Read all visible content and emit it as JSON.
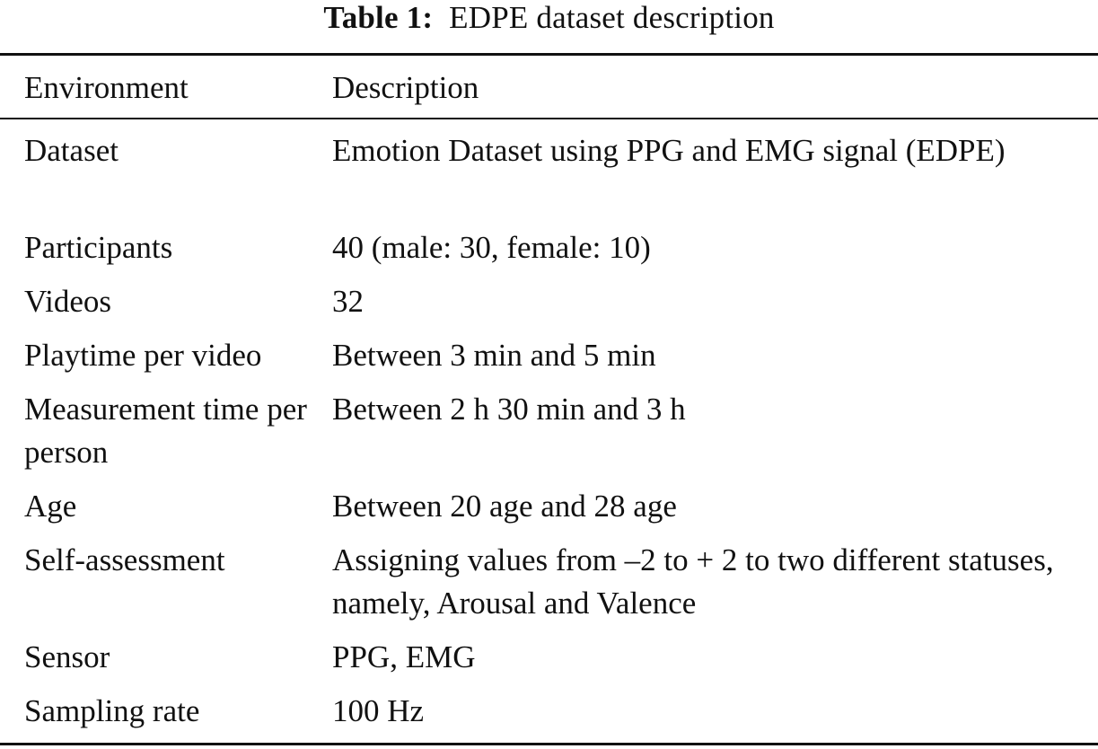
{
  "caption": {
    "label": "Table 1:",
    "title": "EDPE dataset description"
  },
  "table": {
    "headers": [
      "Environment",
      "Description"
    ],
    "rows": [
      {
        "environment": "Dataset",
        "description": "Emotion Dataset using PPG and EMG signal (EDPE)"
      },
      {
        "environment": "Participants",
        "description": "40 (male: 30, female: 10)"
      },
      {
        "environment": "Videos",
        "description": "32"
      },
      {
        "environment": "Playtime per video",
        "description": "Between 3 min and 5 min"
      },
      {
        "environment": "Measurement time per person",
        "description": "Between 2 h 30 min and 3 h"
      },
      {
        "environment": "Age",
        "description": "Between 20 age and 28 age"
      },
      {
        "environment": "Self-assessment",
        "description": "Assigning values from –2 to + 2 to two different statuses, namely, Arousal and Valence"
      },
      {
        "environment": "Sensor",
        "description": "PPG, EMG"
      },
      {
        "environment": "Sampling rate",
        "description": "100 Hz"
      }
    ]
  }
}
